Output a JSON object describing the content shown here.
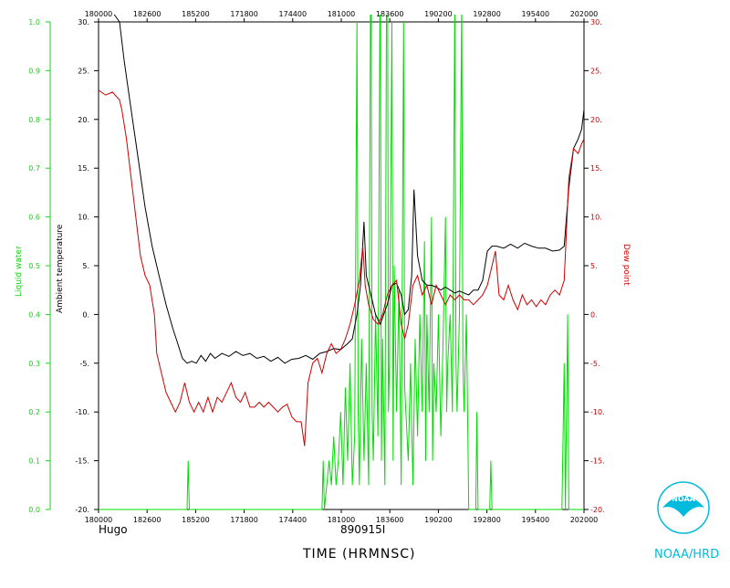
{
  "chart_data": {
    "type": "line",
    "storm_label": "Hugo",
    "date_label": "890915I",
    "xlabel": "TIME (HRMNSC)",
    "ylabel_left_outer": "Liquid water",
    "ylabel_left_inner": "Ambient temperature",
    "ylabel_right": "Dew point",
    "logo_text": "NOAA",
    "org_label": "NOAA/HRD",
    "x_ticks_bottom": [
      "180000",
      "182600",
      "185200",
      "171800",
      "174400",
      "181000",
      "183600",
      "190200",
      "192800",
      "195400",
      "202000"
    ],
    "x_ticks_top": [
      "180000",
      "182600",
      "185200",
      "171800",
      "174400",
      "181000",
      "183600",
      "190200",
      "192800",
      "195400",
      "202000"
    ],
    "temp_ticks": [
      "30.",
      "25.",
      "20.",
      "15.",
      "10.",
      "5.",
      "0.",
      "-5.",
      "-10.",
      "-15.",
      "-20."
    ],
    "temp_ticks_right": [
      "30.",
      "25.",
      "20.",
      "15.",
      "10.",
      "5.",
      "0.",
      "-5.",
      "-10.",
      "-15.",
      "-20."
    ],
    "lw_ticks": [
      "1.0",
      "0.9",
      "0.8",
      "0.7",
      "0.6",
      "0.5",
      "0.4",
      "0.3",
      "0.2",
      "0.1",
      "0.0"
    ],
    "temp_range": [
      -20,
      30
    ],
    "liquid_water_range": [
      0,
      1
    ],
    "colors": {
      "ambient_temperature": "#000000",
      "dew_point": "#cc0000",
      "liquid_water": "#00dd00",
      "temp_axis": "#000000",
      "dew_axis": "#cc0000",
      "lw_axis": "#22cc22",
      "logo": "#00bbdd"
    },
    "series": [
      {
        "name": "Ambient temperature",
        "axis": "temp",
        "points": [
          [
            0,
            32
          ],
          [
            0.3,
            33
          ],
          [
            0.6,
            31
          ],
          [
            0.9,
            30
          ],
          [
            1.1,
            26
          ],
          [
            1.4,
            21
          ],
          [
            1.7,
            16
          ],
          [
            2.0,
            11
          ],
          [
            2.3,
            7
          ],
          [
            2.6,
            4
          ],
          [
            2.9,
            1
          ],
          [
            3.2,
            -1.5
          ],
          [
            3.4,
            -3
          ],
          [
            3.6,
            -4.5
          ],
          [
            3.8,
            -5
          ],
          [
            4.0,
            -4.8
          ],
          [
            4.2,
            -5
          ],
          [
            4.4,
            -4.2
          ],
          [
            4.6,
            -4.8
          ],
          [
            4.8,
            -4
          ],
          [
            5.0,
            -4.5
          ],
          [
            5.3,
            -4
          ],
          [
            5.6,
            -4.3
          ],
          [
            5.9,
            -3.8
          ],
          [
            6.2,
            -4.2
          ],
          [
            6.5,
            -4
          ],
          [
            6.8,
            -4.5
          ],
          [
            7.1,
            -4.3
          ],
          [
            7.4,
            -4.8
          ],
          [
            7.7,
            -4.4
          ],
          [
            8.0,
            -5
          ],
          [
            8.3,
            -4.6
          ],
          [
            8.6,
            -4.5
          ],
          [
            8.9,
            -4.2
          ],
          [
            9.2,
            -4.6
          ],
          [
            9.5,
            -4
          ],
          [
            9.8,
            -3.8
          ],
          [
            10.1,
            -3.5
          ],
          [
            10.4,
            -3.6
          ],
          [
            10.7,
            -3
          ],
          [
            10.9,
            -2.5
          ],
          [
            11.1,
            0
          ],
          [
            11.25,
            3
          ],
          [
            11.4,
            9.5
          ],
          [
            11.5,
            4
          ],
          [
            11.7,
            2
          ],
          [
            11.9,
            0
          ],
          [
            12.1,
            -1
          ],
          [
            12.4,
            1
          ],
          [
            12.6,
            3
          ],
          [
            12.8,
            3.2
          ],
          [
            13.0,
            2
          ],
          [
            13.15,
            0
          ],
          [
            13.3,
            0.5
          ],
          [
            13.45,
            4
          ],
          [
            13.55,
            12.8
          ],
          [
            13.7,
            6
          ],
          [
            13.9,
            3.5
          ],
          [
            14.1,
            3
          ],
          [
            14.3,
            3
          ],
          [
            14.5,
            2.8
          ],
          [
            14.7,
            2.5
          ],
          [
            14.9,
            2.8
          ],
          [
            15.1,
            2.5
          ],
          [
            15.3,
            2.2
          ],
          [
            15.5,
            2.4
          ],
          [
            15.7,
            2.2
          ],
          [
            15.9,
            2
          ],
          [
            16.1,
            2.5
          ],
          [
            16.3,
            2.5
          ],
          [
            16.5,
            3.5
          ],
          [
            16.7,
            6.5
          ],
          [
            16.9,
            7
          ],
          [
            17.1,
            7
          ],
          [
            17.4,
            6.8
          ],
          [
            17.7,
            7.2
          ],
          [
            18.0,
            6.8
          ],
          [
            18.3,
            7.3
          ],
          [
            18.6,
            7
          ],
          [
            18.9,
            6.8
          ],
          [
            19.2,
            6.8
          ],
          [
            19.5,
            6.5
          ],
          [
            19.8,
            6.6
          ],
          [
            20.0,
            7
          ],
          [
            20.2,
            13
          ],
          [
            20.4,
            17
          ],
          [
            20.6,
            18
          ],
          [
            20.75,
            19
          ],
          [
            20.85,
            21
          ]
        ]
      },
      {
        "name": "Dew point",
        "axis": "temp",
        "points": [
          [
            0,
            23
          ],
          [
            0.3,
            22.5
          ],
          [
            0.6,
            22.8
          ],
          [
            0.9,
            22
          ],
          [
            1.0,
            21
          ],
          [
            1.2,
            18
          ],
          [
            1.4,
            14
          ],
          [
            1.6,
            10
          ],
          [
            1.8,
            6
          ],
          [
            2.0,
            4
          ],
          [
            2.2,
            3
          ],
          [
            2.4,
            0
          ],
          [
            2.5,
            -4
          ],
          [
            2.7,
            -6
          ],
          [
            2.9,
            -8
          ],
          [
            3.1,
            -9
          ],
          [
            3.3,
            -10
          ],
          [
            3.5,
            -9
          ],
          [
            3.7,
            -7
          ],
          [
            3.9,
            -9
          ],
          [
            4.1,
            -10
          ],
          [
            4.3,
            -9
          ],
          [
            4.5,
            -10
          ],
          [
            4.7,
            -8.5
          ],
          [
            4.9,
            -10
          ],
          [
            5.1,
            -8.5
          ],
          [
            5.3,
            -9
          ],
          [
            5.5,
            -8
          ],
          [
            5.7,
            -7
          ],
          [
            5.9,
            -8.5
          ],
          [
            6.1,
            -9
          ],
          [
            6.3,
            -8
          ],
          [
            6.5,
            -9.5
          ],
          [
            6.7,
            -9.5
          ],
          [
            6.9,
            -9
          ],
          [
            7.1,
            -9.5
          ],
          [
            7.3,
            -9
          ],
          [
            7.5,
            -9.5
          ],
          [
            7.7,
            -10
          ],
          [
            7.9,
            -9.5
          ],
          [
            8.1,
            -9.2
          ],
          [
            8.3,
            -10.5
          ],
          [
            8.5,
            -11
          ],
          [
            8.7,
            -11
          ],
          [
            8.85,
            -13.5
          ],
          [
            9.0,
            -7
          ],
          [
            9.2,
            -5
          ],
          [
            9.4,
            -4.5
          ],
          [
            9.6,
            -6
          ],
          [
            9.8,
            -4
          ],
          [
            10.0,
            -3
          ],
          [
            10.2,
            -4
          ],
          [
            10.4,
            -3.6
          ],
          [
            10.6,
            -2.5
          ],
          [
            10.8,
            -1
          ],
          [
            11.0,
            1
          ],
          [
            11.2,
            3.5
          ],
          [
            11.35,
            7
          ],
          [
            11.45,
            3
          ],
          [
            11.6,
            1
          ],
          [
            11.8,
            -0.5
          ],
          [
            12.0,
            -1
          ],
          [
            12.2,
            0
          ],
          [
            12.4,
            2
          ],
          [
            12.6,
            3
          ],
          [
            12.8,
            3.5
          ],
          [
            13.0,
            -1
          ],
          [
            13.15,
            -2.5
          ],
          [
            13.3,
            -1
          ],
          [
            13.5,
            3
          ],
          [
            13.7,
            4
          ],
          [
            13.9,
            2
          ],
          [
            14.1,
            3
          ],
          [
            14.3,
            1
          ],
          [
            14.5,
            3
          ],
          [
            14.7,
            2
          ],
          [
            14.9,
            1
          ],
          [
            15.1,
            2
          ],
          [
            15.3,
            1.5
          ],
          [
            15.5,
            2
          ],
          [
            15.7,
            1.5
          ],
          [
            15.9,
            1.5
          ],
          [
            16.1,
            1
          ],
          [
            16.3,
            1.5
          ],
          [
            16.5,
            2
          ],
          [
            16.7,
            3
          ],
          [
            16.9,
            5
          ],
          [
            17.05,
            6.5
          ],
          [
            17.2,
            2
          ],
          [
            17.4,
            1.5
          ],
          [
            17.6,
            3
          ],
          [
            17.8,
            1.5
          ],
          [
            18.0,
            0.5
          ],
          [
            18.2,
            2
          ],
          [
            18.4,
            1
          ],
          [
            18.6,
            1.5
          ],
          [
            18.8,
            0.8
          ],
          [
            19.0,
            1.5
          ],
          [
            19.2,
            1
          ],
          [
            19.4,
            2
          ],
          [
            19.6,
            2.5
          ],
          [
            19.8,
            2
          ],
          [
            20.0,
            3.5
          ],
          [
            20.2,
            14
          ],
          [
            20.4,
            17
          ],
          [
            20.6,
            16.5
          ],
          [
            20.75,
            17.5
          ],
          [
            20.85,
            18
          ]
        ]
      },
      {
        "name": "Liquid water",
        "axis": "liquid_water",
        "points": [
          [
            0,
            0
          ],
          [
            3.8,
            0
          ],
          [
            3.85,
            0.1
          ],
          [
            3.9,
            0
          ],
          [
            9.6,
            0
          ],
          [
            9.65,
            0.1
          ],
          [
            9.7,
            0
          ],
          [
            9.8,
            0.05
          ],
          [
            9.9,
            0.1
          ],
          [
            10.0,
            0.05
          ],
          [
            10.1,
            0.15
          ],
          [
            10.2,
            0.05
          ],
          [
            10.3,
            0.1
          ],
          [
            10.4,
            0.2
          ],
          [
            10.5,
            0.05
          ],
          [
            10.6,
            0.25
          ],
          [
            10.7,
            0.1
          ],
          [
            10.8,
            0.3
          ],
          [
            10.9,
            0.05
          ],
          [
            11.0,
            0.15
          ],
          [
            11.1,
            1.0
          ],
          [
            11.15,
            0.2
          ],
          [
            11.2,
            0.05
          ],
          [
            11.3,
            0.35
          ],
          [
            11.4,
            0.1
          ],
          [
            11.5,
            0.3
          ],
          [
            11.6,
            0.05
          ],
          [
            11.7,
            1.3
          ],
          [
            11.75,
            0.2
          ],
          [
            11.8,
            0.1
          ],
          [
            11.9,
            0.4
          ],
          [
            12.0,
            0.15
          ],
          [
            12.1,
            1.2
          ],
          [
            12.15,
            0.1
          ],
          [
            12.2,
            0.35
          ],
          [
            12.3,
            0.05
          ],
          [
            12.4,
            1.5
          ],
          [
            12.45,
            0.2
          ],
          [
            12.5,
            0.3
          ],
          [
            12.6,
            1.0
          ],
          [
            12.65,
            0.1
          ],
          [
            12.7,
            0.5
          ],
          [
            12.8,
            0.2
          ],
          [
            12.9,
            0.45
          ],
          [
            13.0,
            0.05
          ],
          [
            13.1,
            1.0
          ],
          [
            13.15,
            0.25
          ],
          [
            13.3,
            0.1
          ],
          [
            13.4,
            0.3
          ],
          [
            13.5,
            0.05
          ],
          [
            13.6,
            0.35
          ],
          [
            13.7,
            0.15
          ],
          [
            13.8,
            0.4
          ],
          [
            13.9,
            0.2
          ],
          [
            14.0,
            0.55
          ],
          [
            14.05,
            0.1
          ],
          [
            14.1,
            0.4
          ],
          [
            14.2,
            0.2
          ],
          [
            14.3,
            0.6
          ],
          [
            14.35,
            0.1
          ],
          [
            14.4,
            0.3
          ],
          [
            14.5,
            0.2
          ],
          [
            14.6,
            0.4
          ],
          [
            14.7,
            0.15
          ],
          [
            14.8,
            0.35
          ],
          [
            14.9,
            0.6
          ],
          [
            14.95,
            0.2
          ],
          [
            15.0,
            0.3
          ],
          [
            15.1,
            0.4
          ],
          [
            15.2,
            0.2
          ],
          [
            15.3,
            1.05
          ],
          [
            15.35,
            0.3
          ],
          [
            15.4,
            0.2
          ],
          [
            15.5,
            0.4
          ],
          [
            15.6,
            1.05
          ],
          [
            15.65,
            0.3
          ],
          [
            15.7,
            0.2
          ],
          [
            15.8,
            0.4
          ],
          [
            15.9,
            0
          ],
          [
            16.2,
            0
          ],
          [
            16.25,
            0.2
          ],
          [
            16.3,
            0
          ],
          [
            16.8,
            0
          ],
          [
            16.85,
            0.1
          ],
          [
            16.9,
            0
          ],
          [
            19.9,
            0
          ],
          [
            20.0,
            0.3
          ],
          [
            20.05,
            0
          ],
          [
            20.15,
            0.4
          ],
          [
            20.2,
            0
          ],
          [
            20.4,
            0
          ],
          [
            20.85,
            0
          ]
        ]
      }
    ]
  }
}
